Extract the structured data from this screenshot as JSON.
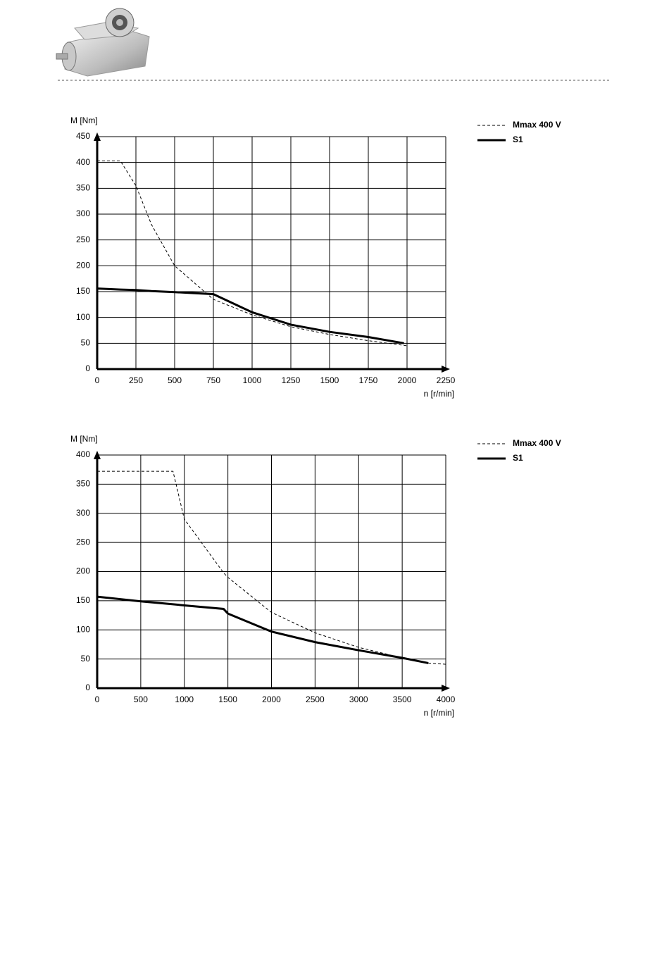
{
  "chart_data": [
    {
      "type": "line",
      "y_label": "M [Nm]",
      "x_label": "n [r/min]",
      "x": [
        0,
        150,
        250,
        350,
        500,
        750,
        1000,
        1250,
        1500,
        1750,
        1980,
        2000
      ],
      "series": [
        {
          "name": "Mmax 400 V",
          "color": "#000000",
          "style": "dashed",
          "values": [
            403,
            403,
            355,
            280,
            200,
            135,
            105,
            82,
            67,
            55,
            46,
            45
          ]
        },
        {
          "name": "S1",
          "color": "#000000",
          "style": "solid",
          "values": [
            156,
            154,
            153,
            151,
            149,
            145,
            110,
            86,
            72,
            62,
            50,
            null
          ]
        }
      ],
      "xlim": [
        0,
        2250
      ],
      "xticks": [
        0,
        250,
        500,
        750,
        1000,
        1250,
        1500,
        1750,
        2000,
        2250
      ],
      "ylim": [
        0,
        450
      ],
      "yticks": [
        0,
        50,
        100,
        150,
        200,
        250,
        300,
        350,
        400,
        450
      ],
      "grid": true,
      "legend": "right"
    },
    {
      "type": "line",
      "y_label": "M [Nm]",
      "x_label": "n [r/min]",
      "x": [
        0,
        500,
        870,
        1000,
        1450,
        1500,
        2000,
        2500,
        3000,
        3500,
        3800,
        4000
      ],
      "series": [
        {
          "name": "Mmax 400 V",
          "color": "#000000",
          "style": "dashed",
          "values": [
            372,
            372,
            372,
            290,
            198,
            190,
            130,
            95,
            70,
            52,
            43,
            41
          ]
        },
        {
          "name": "S1",
          "color": "#000000",
          "style": "solid",
          "values": [
            157,
            149,
            144,
            142,
            136,
            128,
            97,
            79,
            65,
            52,
            43,
            null
          ]
        }
      ],
      "xlim": [
        0,
        4000
      ],
      "xticks": [
        0,
        500,
        1000,
        1500,
        2000,
        2500,
        3000,
        3500,
        4000
      ],
      "ylim": [
        0,
        400
      ],
      "yticks": [
        0,
        50,
        100,
        150,
        200,
        250,
        300,
        350,
        400
      ],
      "grid": true,
      "legend": "right"
    }
  ]
}
